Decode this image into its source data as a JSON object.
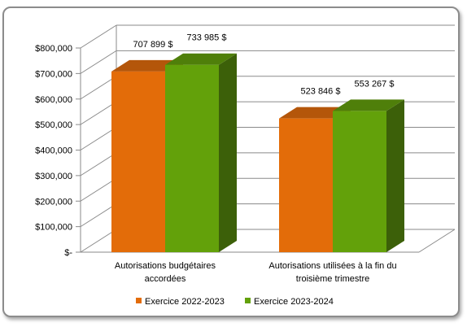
{
  "chart_data": {
    "type": "bar",
    "title": "",
    "xlabel": "",
    "ylabel": "",
    "ylim": [
      0,
      800000
    ],
    "y_ticks": [
      "$-",
      "$100,000",
      "$200,000",
      "$300,000",
      "$400,000",
      "$500,000",
      "$600,000",
      "$700,000",
      "$800,000"
    ],
    "categories": [
      [
        "Autorisations budgétaires",
        "accordées"
      ],
      [
        "Autorisations utilisées à la fin du",
        "troisième trimestre"
      ]
    ],
    "series": [
      {
        "name": "Exercice 2022-2023",
        "values": [
          707899,
          523846
        ],
        "labels": [
          "707 899 $",
          "523 846 $"
        ],
        "color": "#e36c09",
        "top_color": "#b4560a",
        "side_color": "#a84f08"
      },
      {
        "name": "Exercice 2023-2024",
        "values": [
          733985,
          553267
        ],
        "labels": [
          "733 985 $",
          "553 267 $"
        ],
        "color": "#63a10a",
        "top_color": "#4f7f0a",
        "side_color": "#3c6009"
      }
    ],
    "grid": true,
    "legend_position": "bottom",
    "style": "3d-clustered-column"
  }
}
